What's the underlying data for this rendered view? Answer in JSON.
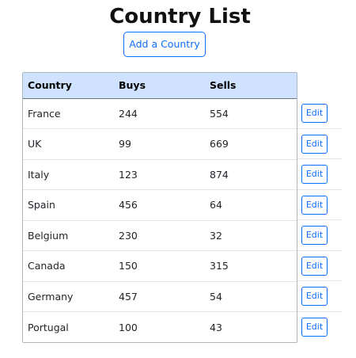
{
  "page": {
    "title": "Country List",
    "add_button_label": "Add a Country"
  },
  "table": {
    "columns": [
      "Country",
      "Buys",
      "Sells"
    ],
    "rows": [
      {
        "country": "France",
        "buys": "244",
        "sells": "554",
        "action": "Edit"
      },
      {
        "country": "UK",
        "buys": "99",
        "sells": "669",
        "action": "Edit"
      },
      {
        "country": "Italy",
        "buys": "123",
        "sells": "874",
        "action": "Edit"
      },
      {
        "country": "Spain",
        "buys": "456",
        "sells": "64",
        "action": "Edit"
      },
      {
        "country": "Belgium",
        "buys": "230",
        "sells": "32",
        "action": "Edit"
      },
      {
        "country": "Canada",
        "buys": "150",
        "sells": "315",
        "action": "Edit"
      },
      {
        "country": "Germany",
        "buys": "457",
        "sells": "54",
        "action": "Edit"
      },
      {
        "country": "Portugal",
        "buys": "100",
        "sells": "43",
        "action": "Edit"
      }
    ]
  },
  "colors": {
    "header_bg": "#cfe2ff",
    "accent": "#0d6efd"
  }
}
